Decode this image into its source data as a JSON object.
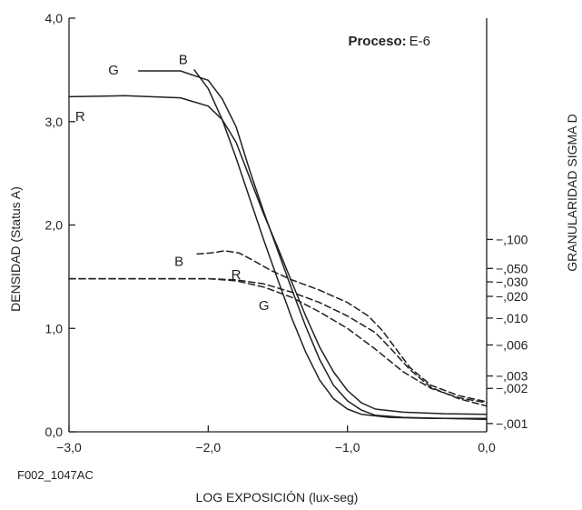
{
  "chart_data": {
    "type": "line",
    "code": "F002_1047AC",
    "annotation": {
      "label": "Proceso:",
      "value": "E-6"
    },
    "xlabel": "LOG EXPOSICIÓN (lux-seg)",
    "ylabel": "DENSIDAD (Status A)",
    "y2label": "GRANULARIDAD SIGMA D",
    "xlim": [
      -3.0,
      0.0
    ],
    "ylim": [
      0.0,
      4.0
    ],
    "x_ticks": [
      "−3,0",
      "−2,0",
      "−1,0",
      "0,0"
    ],
    "y_ticks": [
      "0,0",
      "1,0",
      "2,0",
      "3,0",
      "4,0"
    ],
    "y2_ticks": [
      {
        "label": ",100",
        "density": 1.86
      },
      {
        "label": ",050",
        "density": 1.58
      },
      {
        "label": ",030",
        "density": 1.45
      },
      {
        "label": ",020",
        "density": 1.31
      },
      {
        "label": ",010",
        "density": 1.1
      },
      {
        "label": ",006",
        "density": 0.84
      },
      {
        "label": ",003",
        "density": 0.54
      },
      {
        "label": ",002",
        "density": 0.42
      },
      {
        "label": ",001",
        "density": 0.08
      }
    ],
    "series": [
      {
        "name": "R",
        "style": "solid",
        "points": [
          [
            -3.0,
            3.24
          ],
          [
            -2.6,
            3.25
          ],
          [
            -2.2,
            3.23
          ],
          [
            -2.0,
            3.15
          ],
          [
            -1.9,
            3.02
          ],
          [
            -1.8,
            2.8
          ],
          [
            -1.7,
            2.45
          ],
          [
            -1.6,
            2.1
          ],
          [
            -1.5,
            1.78
          ],
          [
            -1.4,
            1.45
          ],
          [
            -1.3,
            1.12
          ],
          [
            -1.2,
            0.82
          ],
          [
            -1.1,
            0.58
          ],
          [
            -1.0,
            0.4
          ],
          [
            -0.9,
            0.28
          ],
          [
            -0.8,
            0.22
          ],
          [
            -0.6,
            0.19
          ],
          [
            -0.3,
            0.175
          ],
          [
            0.0,
            0.17
          ]
        ]
      },
      {
        "name": "G",
        "style": "solid",
        "points": [
          [
            -2.5,
            3.49
          ],
          [
            -2.2,
            3.49
          ],
          [
            -2.0,
            3.4
          ],
          [
            -1.9,
            3.22
          ],
          [
            -1.8,
            2.95
          ],
          [
            -1.7,
            2.52
          ],
          [
            -1.6,
            2.12
          ],
          [
            -1.5,
            1.75
          ],
          [
            -1.4,
            1.38
          ],
          [
            -1.3,
            1.02
          ],
          [
            -1.2,
            0.7
          ],
          [
            -1.1,
            0.45
          ],
          [
            -1.0,
            0.3
          ],
          [
            -0.9,
            0.21
          ],
          [
            -0.8,
            0.16
          ],
          [
            -0.6,
            0.14
          ],
          [
            -0.3,
            0.13
          ],
          [
            0.0,
            0.12
          ]
        ]
      },
      {
        "name": "B",
        "style": "solid",
        "points": [
          [
            -2.1,
            3.5
          ],
          [
            -2.0,
            3.32
          ],
          [
            -1.9,
            3.02
          ],
          [
            -1.8,
            2.65
          ],
          [
            -1.7,
            2.25
          ],
          [
            -1.6,
            1.85
          ],
          [
            -1.5,
            1.47
          ],
          [
            -1.4,
            1.1
          ],
          [
            -1.3,
            0.77
          ],
          [
            -1.2,
            0.5
          ],
          [
            -1.1,
            0.32
          ],
          [
            -1.0,
            0.22
          ],
          [
            -0.9,
            0.17
          ],
          [
            -0.7,
            0.14
          ],
          [
            -0.4,
            0.13
          ],
          [
            0.0,
            0.13
          ]
        ]
      },
      {
        "name": "B",
        "style": "dashed",
        "points": [
          [
            -2.08,
            1.72
          ],
          [
            -1.98,
            1.73
          ],
          [
            -1.88,
            1.75
          ],
          [
            -1.78,
            1.73
          ],
          [
            -1.68,
            1.66
          ],
          [
            -1.55,
            1.56
          ],
          [
            -1.4,
            1.47
          ],
          [
            -1.2,
            1.37
          ],
          [
            -1.0,
            1.25
          ],
          [
            -0.85,
            1.12
          ],
          [
            -0.75,
            0.98
          ],
          [
            -0.65,
            0.8
          ],
          [
            -0.55,
            0.62
          ],
          [
            -0.4,
            0.45
          ],
          [
            -0.2,
            0.35
          ],
          [
            0.0,
            0.29
          ]
        ]
      },
      {
        "name": "R",
        "style": "dashed",
        "points": [
          [
            -3.0,
            1.48
          ],
          [
            -2.5,
            1.48
          ],
          [
            -2.0,
            1.48
          ],
          [
            -1.8,
            1.47
          ],
          [
            -1.6,
            1.43
          ],
          [
            -1.4,
            1.35
          ],
          [
            -1.2,
            1.25
          ],
          [
            -1.0,
            1.12
          ],
          [
            -0.8,
            0.96
          ],
          [
            -0.7,
            0.82
          ],
          [
            -0.55,
            0.6
          ],
          [
            -0.4,
            0.43
          ],
          [
            -0.2,
            0.32
          ],
          [
            0.0,
            0.25
          ]
        ]
      },
      {
        "name": "G",
        "style": "dashed",
        "points": [
          [
            -3.0,
            1.48
          ],
          [
            -2.5,
            1.48
          ],
          [
            -2.0,
            1.48
          ],
          [
            -1.8,
            1.46
          ],
          [
            -1.6,
            1.4
          ],
          [
            -1.4,
            1.3
          ],
          [
            -1.2,
            1.16
          ],
          [
            -1.0,
            1.0
          ],
          [
            -0.8,
            0.8
          ],
          [
            -0.6,
            0.58
          ],
          [
            -0.4,
            0.42
          ],
          [
            -0.2,
            0.33
          ],
          [
            0.0,
            0.28
          ]
        ]
      }
    ],
    "labels": [
      {
        "text": "R",
        "x": -2.92,
        "y": 3.05
      },
      {
        "text": "G",
        "x": -2.68,
        "y": 3.5
      },
      {
        "text": "B",
        "x": -2.18,
        "y": 3.6
      },
      {
        "text": "B",
        "x": -2.21,
        "y": 1.65
      },
      {
        "text": "R",
        "x": -1.8,
        "y": 1.52
      },
      {
        "text": "G",
        "x": -1.6,
        "y": 1.22
      }
    ],
    "grid": false,
    "legend": "none"
  }
}
